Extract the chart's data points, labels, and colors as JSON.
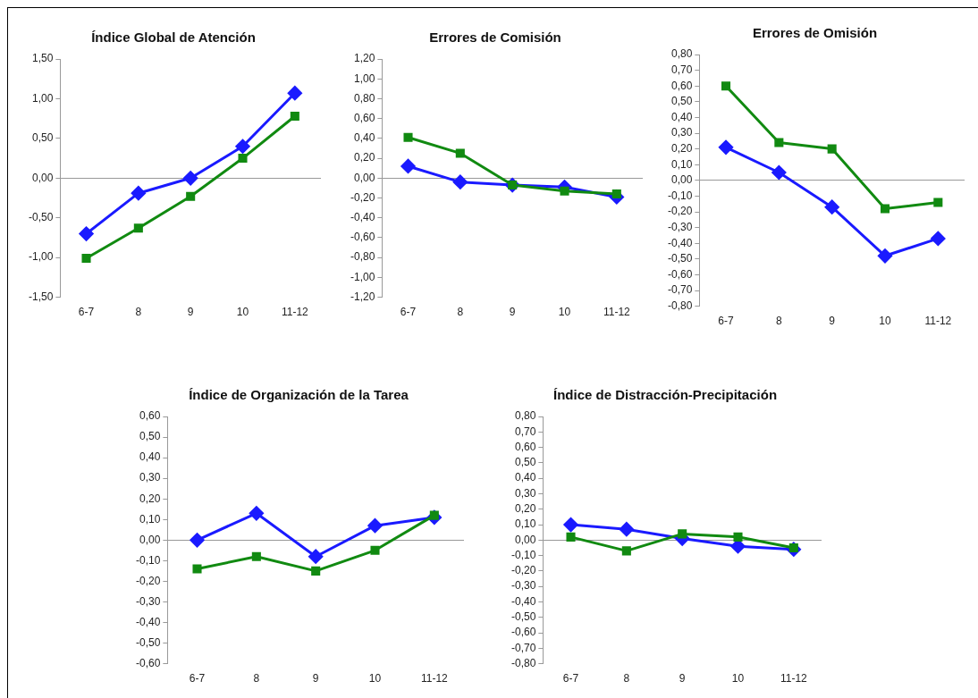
{
  "chart_data": [
    {
      "type": "line",
      "title": "Índice Global de Atención",
      "categories": [
        "6-7",
        "8",
        "9",
        "10",
        "11-12"
      ],
      "ylim": [
        -1.5,
        1.5
      ],
      "yticks": [
        {
          "value": -1.5,
          "label": "-1,50"
        },
        {
          "value": -1,
          "label": "-1,00"
        },
        {
          "value": -0.5,
          "label": "-0,50"
        },
        {
          "value": 0,
          "label": "0,00"
        },
        {
          "value": 0.5,
          "label": "0,50"
        },
        {
          "value": 1,
          "label": "1,00"
        },
        {
          "value": 1.5,
          "label": "1,50"
        }
      ],
      "series": [
        {
          "color": "#1a1aff",
          "marker": "diamond",
          "values": [
            -0.7,
            -0.19,
            0.0,
            0.4,
            1.07
          ]
        },
        {
          "color": "#118a11",
          "marker": "square",
          "values": [
            -1.01,
            -0.63,
            -0.23,
            0.25,
            0.78
          ]
        }
      ]
    },
    {
      "type": "line",
      "title": "Errores de Comisión",
      "categories": [
        "6-7",
        "8",
        "9",
        "10",
        "11-12"
      ],
      "ylim": [
        -1.2,
        1.2
      ],
      "yticks": [
        {
          "value": -1.2,
          "label": "-1,20"
        },
        {
          "value": -1,
          "label": "-1,00"
        },
        {
          "value": -0.8,
          "label": "-0,80"
        },
        {
          "value": -0.6,
          "label": "-0,60"
        },
        {
          "value": -0.4,
          "label": "-0,40"
        },
        {
          "value": -0.2,
          "label": "-0,20"
        },
        {
          "value": 0,
          "label": "0,00"
        },
        {
          "value": 0.2,
          "label": "0,20"
        },
        {
          "value": 0.4,
          "label": "0,40"
        },
        {
          "value": 0.6,
          "label": "0,60"
        },
        {
          "value": 0.8,
          "label": "0,80"
        },
        {
          "value": 1,
          "label": "1,00"
        },
        {
          "value": 1.2,
          "label": "1,20"
        }
      ],
      "series": [
        {
          "color": "#1a1aff",
          "marker": "diamond",
          "values": [
            0.12,
            -0.04,
            -0.07,
            -0.09,
            -0.19
          ]
        },
        {
          "color": "#118a11",
          "marker": "square",
          "values": [
            0.41,
            0.25,
            -0.07,
            -0.13,
            -0.16
          ]
        }
      ]
    },
    {
      "type": "line",
      "title": "Errores de Omisión",
      "categories": [
        "6-7",
        "8",
        "9",
        "10",
        "11-12"
      ],
      "ylim": [
        -0.8,
        0.8
      ],
      "yticks": [
        {
          "value": -0.8,
          "label": "-0,80"
        },
        {
          "value": -0.7,
          "label": "-0,70"
        },
        {
          "value": -0.6,
          "label": "-0,60"
        },
        {
          "value": -0.5,
          "label": "-0,50"
        },
        {
          "value": -0.4,
          "label": "-0,40"
        },
        {
          "value": -0.3,
          "label": "-0,30"
        },
        {
          "value": -0.2,
          "label": "-0,20"
        },
        {
          "value": -0.1,
          "label": "-0,10"
        },
        {
          "value": 0,
          "label": "0,00"
        },
        {
          "value": 0.1,
          "label": "0,10"
        },
        {
          "value": 0.2,
          "label": "0,20"
        },
        {
          "value": 0.3,
          "label": "0,30"
        },
        {
          "value": 0.4,
          "label": "0,40"
        },
        {
          "value": 0.5,
          "label": "0,50"
        },
        {
          "value": 0.6,
          "label": "0,60"
        },
        {
          "value": 0.7,
          "label": "0,70"
        },
        {
          "value": 0.8,
          "label": "0,80"
        }
      ],
      "series": [
        {
          "color": "#1a1aff",
          "marker": "diamond",
          "values": [
            0.21,
            0.05,
            -0.17,
            -0.48,
            -0.37
          ]
        },
        {
          "color": "#118a11",
          "marker": "square",
          "values": [
            0.6,
            0.24,
            0.2,
            -0.18,
            -0.14
          ]
        }
      ]
    },
    {
      "type": "line",
      "title": "Índice de Organización de la Tarea",
      "categories": [
        "6-7",
        "8",
        "9",
        "10",
        "11-12"
      ],
      "ylim": [
        -0.6,
        0.6
      ],
      "yticks": [
        {
          "value": -0.6,
          "label": "-0,60"
        },
        {
          "value": -0.5,
          "label": "-0,50"
        },
        {
          "value": -0.4,
          "label": "-0,40"
        },
        {
          "value": -0.3,
          "label": "-0,30"
        },
        {
          "value": -0.2,
          "label": "-0,20"
        },
        {
          "value": -0.1,
          "label": "-0,10"
        },
        {
          "value": 0,
          "label": "0,00"
        },
        {
          "value": 0.1,
          "label": "0,10"
        },
        {
          "value": 0.2,
          "label": "0,20"
        },
        {
          "value": 0.3,
          "label": "0,30"
        },
        {
          "value": 0.4,
          "label": "0,40"
        },
        {
          "value": 0.5,
          "label": "0,50"
        },
        {
          "value": 0.6,
          "label": "0,60"
        }
      ],
      "series": [
        {
          "color": "#1a1aff",
          "marker": "diamond",
          "values": [
            0.0,
            0.13,
            -0.08,
            0.07,
            0.11
          ]
        },
        {
          "color": "#118a11",
          "marker": "square",
          "values": [
            -0.14,
            -0.08,
            -0.15,
            -0.05,
            0.12
          ]
        }
      ]
    },
    {
      "type": "line",
      "title": "Índice de Distracción-Precipitación",
      "categories": [
        "6-7",
        "8",
        "9",
        "10",
        "11-12"
      ],
      "ylim": [
        -0.8,
        0.8
      ],
      "yticks": [
        {
          "value": -0.8,
          "label": "-0,80"
        },
        {
          "value": -0.7,
          "label": "-0,70"
        },
        {
          "value": -0.6,
          "label": "-0,60"
        },
        {
          "value": -0.5,
          "label": "-0,50"
        },
        {
          "value": -0.4,
          "label": "-0,40"
        },
        {
          "value": -0.3,
          "label": "-0,30"
        },
        {
          "value": -0.2,
          "label": "-0,20"
        },
        {
          "value": -0.1,
          "label": "-0,10"
        },
        {
          "value": 0,
          "label": "0,00"
        },
        {
          "value": 0.1,
          "label": "0,10"
        },
        {
          "value": 0.2,
          "label": "0,20"
        },
        {
          "value": 0.3,
          "label": "0,30"
        },
        {
          "value": 0.4,
          "label": "0,40"
        },
        {
          "value": 0.5,
          "label": "0,50"
        },
        {
          "value": 0.6,
          "label": "0,60"
        },
        {
          "value": 0.7,
          "label": "0,70"
        },
        {
          "value": 0.8,
          "label": "0,80"
        }
      ],
      "series": [
        {
          "color": "#1a1aff",
          "marker": "diamond",
          "values": [
            0.1,
            0.07,
            0.01,
            -0.04,
            -0.06
          ]
        },
        {
          "color": "#118a11",
          "marker": "square",
          "values": [
            0.02,
            -0.07,
            0.04,
            0.02,
            -0.05
          ]
        }
      ]
    }
  ]
}
